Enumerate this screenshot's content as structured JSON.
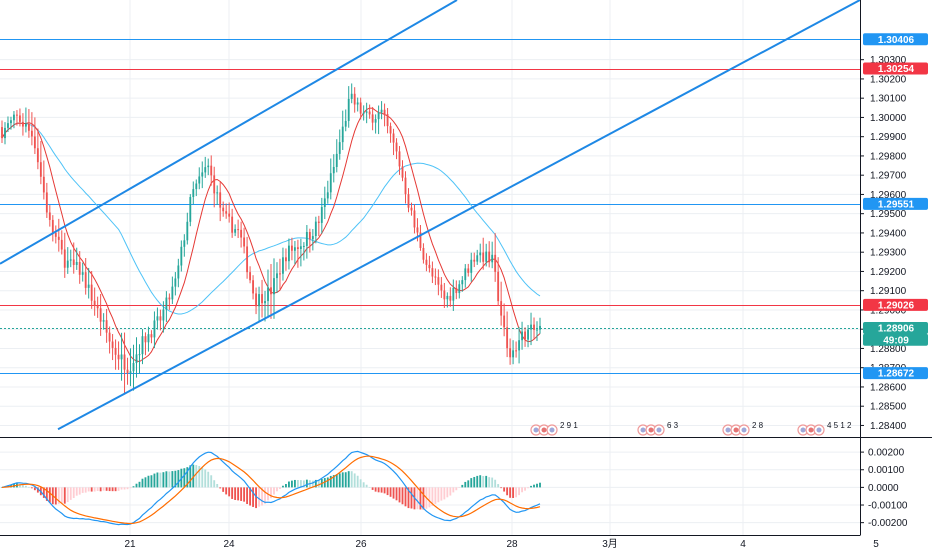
{
  "chart_data": {
    "type": "candlestick",
    "price_axis": {
      "ticks": [
        "1.30300",
        "1.30200",
        "1.30100",
        "1.30000",
        "1.29900",
        "1.29800",
        "1.29700",
        "1.29600",
        "1.29500",
        "1.29400",
        "1.29300",
        "1.29200",
        "1.29100",
        "1.29000",
        "1.28900",
        "1.28800",
        "1.28700",
        "1.28600",
        "1.28500",
        "1.28400"
      ],
      "range": [
        1.2834,
        1.3061
      ]
    },
    "macd_axis": {
      "ticks": [
        "0.00200",
        "0.00100",
        "0.0000",
        "-0.00100",
        "-0.00200"
      ],
      "range": [
        -0.0027,
        0.0028
      ]
    },
    "time_axis": {
      "labels": [
        "21",
        "24",
        "26",
        "28",
        "3月",
        "4",
        "5"
      ]
    },
    "price_labels": [
      {
        "text": "1.30406",
        "value": 1.30406,
        "color": "#2196f3"
      },
      {
        "text": "1.30254",
        "value": 1.30254,
        "color": "#f23645"
      },
      {
        "text": "1.29551",
        "value": 1.29551,
        "color": "#2196f3"
      },
      {
        "text": "1.29026",
        "value": 1.29026,
        "color": "#f23645"
      },
      {
        "text": "1.28906",
        "value": 1.28906,
        "color": "#26a69a"
      },
      {
        "text": "49:09",
        "value": 1.28845,
        "color": "#26a69a"
      },
      {
        "text": "1.28672",
        "value": 1.28672,
        "color": "#2196f3"
      }
    ],
    "horizontal_lines": [
      {
        "value": 1.30406,
        "color": "#2196f3"
      },
      {
        "value": 1.30254,
        "color": "#f23645"
      },
      {
        "value": 1.29551,
        "color": "#2196f3"
      },
      {
        "value": 1.29026,
        "color": "#f23645"
      },
      {
        "value": 1.28906,
        "color": "#26a69a",
        "dashed": true
      },
      {
        "value": 1.28672,
        "color": "#2196f3"
      }
    ],
    "trend_lines": [
      {
        "from": [
          0,
          1.2924
        ],
        "to": [
          457,
          1.3061
        ],
        "color": "#1e88e5"
      },
      {
        "from": [
          58,
          1.2838
        ],
        "to": [
          860,
          1.3061
        ],
        "color": "#1e88e5"
      }
    ],
    "event_icons": [
      {
        "x": 548,
        "label": "2 9 1"
      },
      {
        "x": 655,
        "label": "6 3"
      },
      {
        "x": 740,
        "label": "2 8"
      },
      {
        "x": 815,
        "label": "4 5 1 2"
      }
    ],
    "ohlc_anchors": [
      [
        1.2995,
        1.2999,
        1.299,
        1.2993
      ],
      [
        1.2993,
        1.3002,
        1.2988,
        1.3
      ],
      [
        1.3,
        1.3022,
        1.2985,
        1.299
      ],
      [
        1.299,
        1.2995,
        1.294,
        1.2945
      ],
      [
        1.2945,
        1.296,
        1.2918,
        1.2925
      ],
      [
        1.2925,
        1.2935,
        1.2915,
        1.292
      ],
      [
        1.292,
        1.2928,
        1.289,
        1.29
      ],
      [
        1.29,
        1.2905,
        1.287,
        1.288
      ],
      [
        1.288,
        1.29,
        1.285,
        1.287
      ],
      [
        1.287,
        1.289,
        1.286,
        1.2885
      ],
      [
        1.2885,
        1.29,
        1.2878,
        1.2895
      ],
      [
        1.2895,
        1.292,
        1.289,
        1.2915
      ],
      [
        1.2915,
        1.2965,
        1.291,
        1.296
      ],
      [
        1.296,
        1.2982,
        1.295,
        1.2975
      ],
      [
        1.2975,
        1.298,
        1.294,
        1.2948
      ],
      [
        1.2948,
        1.2955,
        1.2935,
        1.294
      ],
      [
        1.294,
        1.2945,
        1.29,
        1.2905
      ],
      [
        1.2905,
        1.2925,
        1.2885,
        1.291
      ],
      [
        1.291,
        1.2935,
        1.2905,
        1.293
      ],
      [
        1.293,
        1.294,
        1.2915,
        1.2935
      ],
      [
        1.2935,
        1.295,
        1.2925,
        1.2945
      ],
      [
        1.2945,
        1.2985,
        1.294,
        1.2975
      ],
      [
        1.2975,
        1.3018,
        1.297,
        1.301
      ],
      [
        1.301,
        1.3015,
        1.2995,
        1.3
      ],
      [
        1.3,
        1.3008,
        1.299,
        1.3002
      ],
      [
        1.3002,
        1.3005,
        1.2975,
        1.298
      ],
      [
        1.298,
        1.2985,
        1.294,
        1.2945
      ],
      [
        1.2945,
        1.295,
        1.2915,
        1.292
      ],
      [
        1.292,
        1.2925,
        1.29,
        1.2905
      ],
      [
        1.2905,
        1.292,
        1.29,
        1.2915
      ],
      [
        1.2915,
        1.2935,
        1.291,
        1.293
      ],
      [
        1.293,
        1.2948,
        1.292,
        1.2925
      ],
      [
        1.2925,
        1.2935,
        1.2868,
        1.2875
      ],
      [
        1.2875,
        1.2895,
        1.2865,
        1.2888
      ],
      [
        1.2888,
        1.2896,
        1.288,
        1.289
      ]
    ],
    "candle_count": 181,
    "ma_fast_period": 9,
    "ma_slow_period": 40,
    "colors": {
      "up": "#26a69a",
      "down": "#ef5350",
      "ma_fast": "#e53935",
      "ma_slow": "#4fc3f7",
      "macd": "#2196f3",
      "signal": "#ff6d00"
    }
  }
}
